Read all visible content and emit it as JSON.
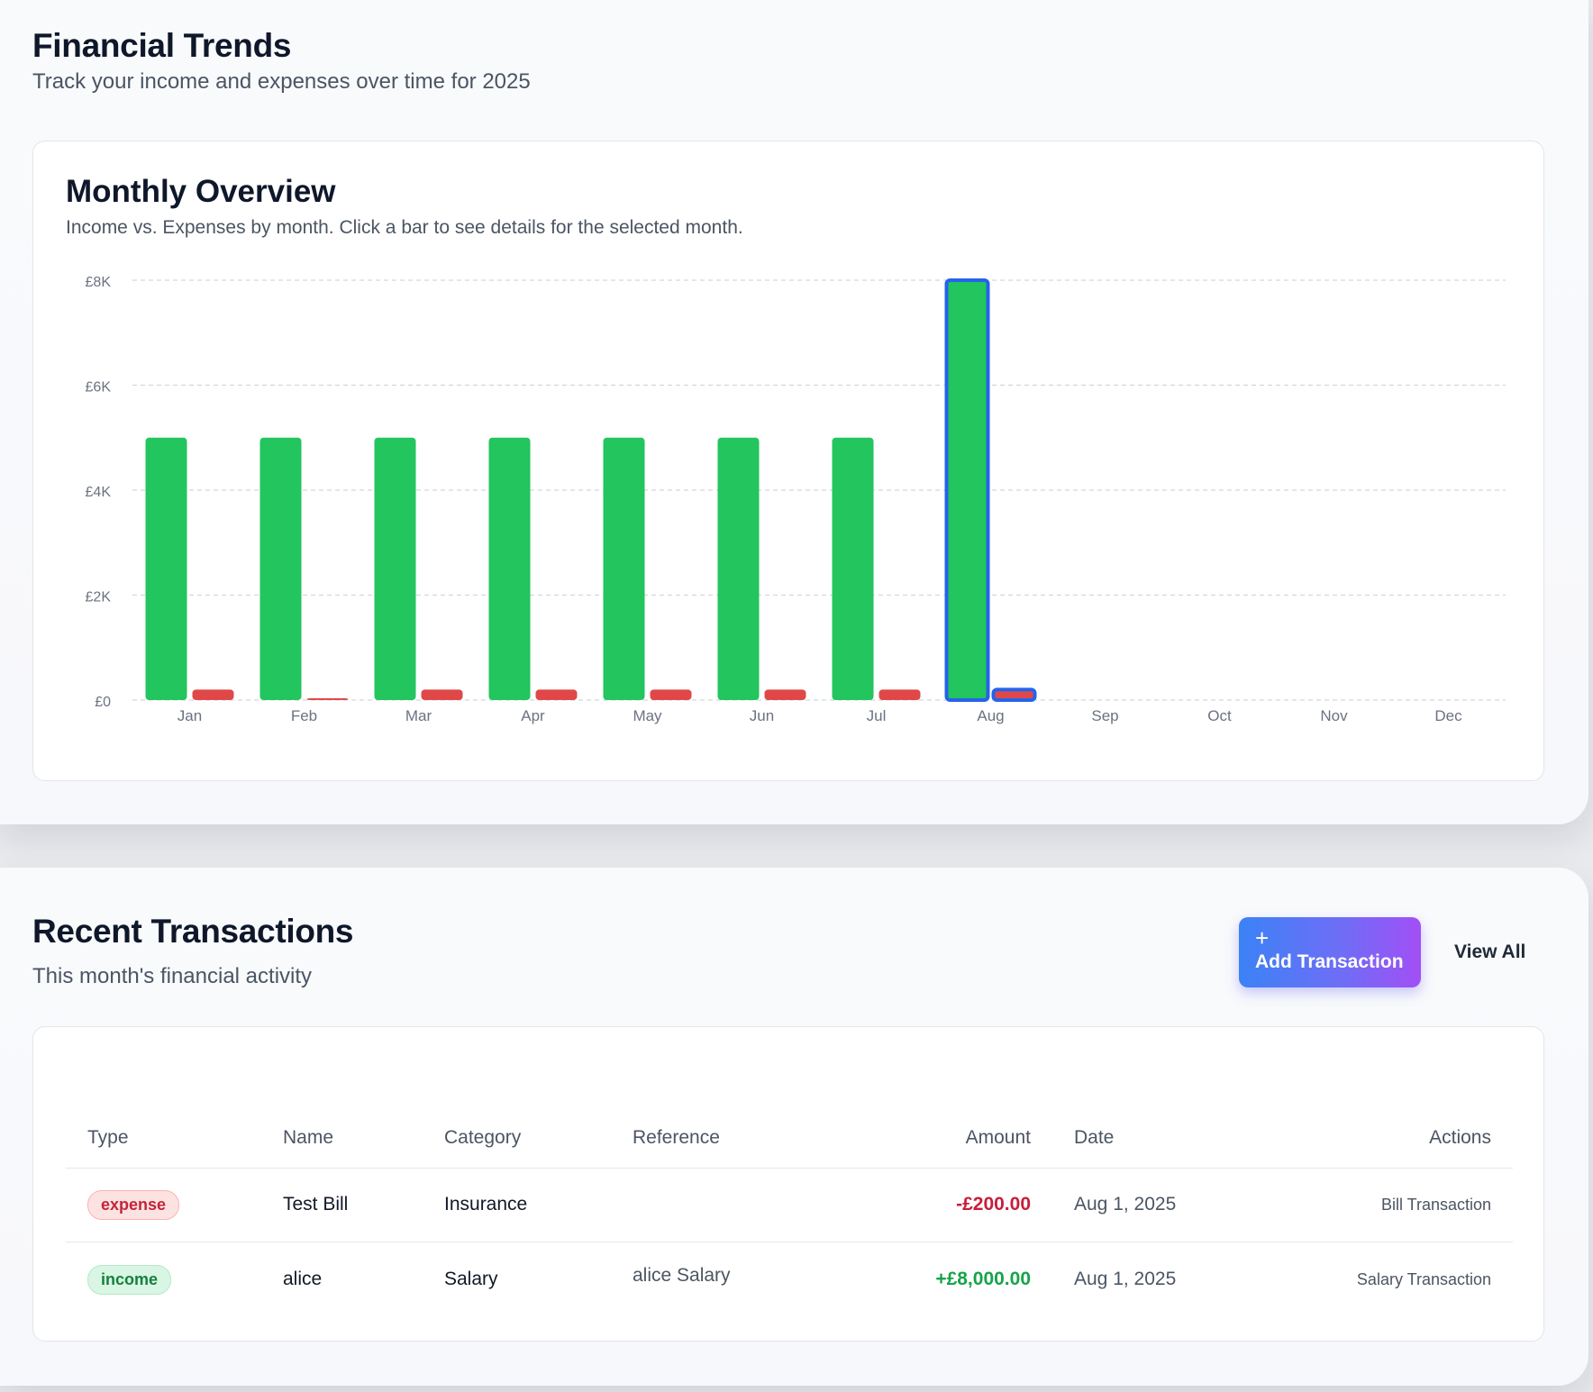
{
  "trends": {
    "title": "Financial Trends",
    "subtitle": "Track your income and expenses over time for 2025"
  },
  "overview": {
    "title": "Monthly Overview",
    "subtitle": "Income vs. Expenses by month. Click a bar to see details for the selected month."
  },
  "chart_data": {
    "type": "bar",
    "categories": [
      "Jan",
      "Feb",
      "Mar",
      "Apr",
      "May",
      "Jun",
      "Jul",
      "Aug",
      "Sep",
      "Oct",
      "Nov",
      "Dec"
    ],
    "series": [
      {
        "key": "income",
        "color": "#22c55e",
        "values": [
          5000,
          5000,
          5000,
          5000,
          5000,
          5000,
          5000,
          8000,
          0,
          0,
          0,
          0
        ]
      },
      {
        "key": "expenses",
        "color": "#e04848",
        "values": [
          200,
          30,
          200,
          200,
          200,
          200,
          200,
          200,
          0,
          0,
          0,
          0
        ]
      }
    ],
    "ylim": [
      0,
      8000
    ],
    "yticks": [
      0,
      2000,
      4000,
      6000,
      8000
    ],
    "ytick_labels": [
      "£0",
      "£2K",
      "£4K",
      "£6K",
      "£8K"
    ],
    "grid": true,
    "selected_category": "Aug",
    "selected_outline_color": "#2563eb"
  },
  "transactions": {
    "title": "Recent Transactions",
    "subtitle": "This month's financial activity",
    "add_label": "Add Transaction",
    "add_icon": "plus-icon",
    "view_all_label": "View All",
    "columns": {
      "type": "Type",
      "name": "Name",
      "category": "Category",
      "reference": "Reference",
      "amount": "Amount",
      "date": "Date",
      "actions": "Actions"
    },
    "rows": [
      {
        "type": "expense",
        "name": "Test Bill",
        "category": "Insurance",
        "reference": "",
        "amount": "-£200.00",
        "date": "Aug 1, 2025",
        "action": "Bill Transaction"
      },
      {
        "type": "income",
        "name": "alice",
        "category": "Salary",
        "reference": "alice Salary",
        "amount": "+£8,000.00",
        "date": "Aug 1, 2025",
        "action": "Salary Transaction"
      }
    ]
  }
}
